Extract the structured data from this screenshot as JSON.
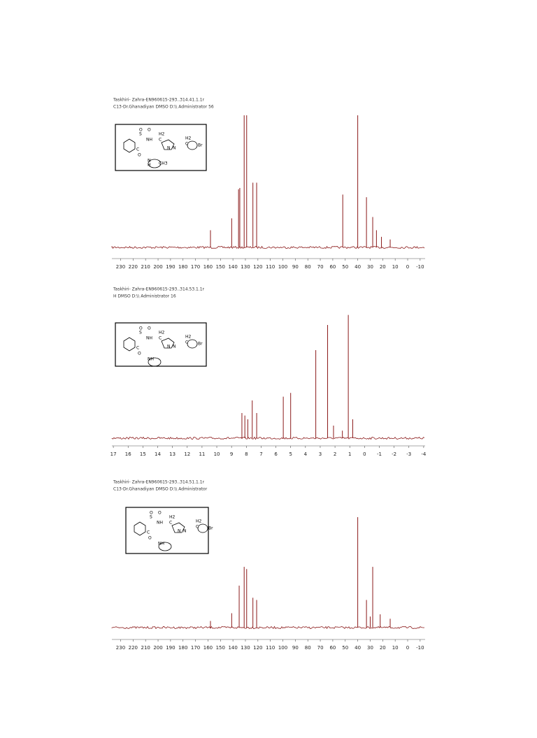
{
  "chart_data": [
    {
      "type": "spectrum",
      "title": "Taskhiri- Zahra-EN960615-293..314.41.1.1r",
      "subtitle": "C13-Dr.Ghanadiyan DMSO D:\\\\ Administrator 56",
      "x": [
        158,
        141,
        135.5,
        134.5,
        131,
        129,
        124,
        121,
        52,
        40,
        33,
        28,
        25,
        21,
        14
      ],
      "values": [
        13,
        22,
        44,
        45,
        100,
        100,
        49,
        49,
        40,
        100,
        38,
        23,
        13,
        8,
        6
      ],
      "xlim": [
        237,
        -14
      ],
      "xticks": [
        230,
        220,
        210,
        200,
        190,
        180,
        170,
        160,
        150,
        140,
        130,
        120,
        110,
        100,
        90,
        80,
        70,
        60,
        50,
        40,
        30,
        20,
        10,
        0,
        -10
      ],
      "ylim": [
        0,
        100
      ],
      "color": "#8b1a1a",
      "structure_labels": [
        "S",
        "O",
        "O",
        "NH",
        "C",
        "H2",
        "N",
        "N",
        "C",
        "H2",
        "Br",
        "O",
        "C",
        "N",
        "H",
        "CH3"
      ]
    },
    {
      "type": "spectrum",
      "title": "Taskhiri- Zahra-EN960615-293..314.53.1.1r",
      "subtitle": "H DMSO D:\\\\ Administrator 16",
      "x": [
        8.3,
        8.1,
        7.9,
        7.6,
        7.3,
        5.5,
        5.0,
        3.3,
        2.5,
        2.1,
        1.5,
        1.1,
        0.8
      ],
      "values": [
        20,
        18,
        15,
        30,
        20,
        33,
        36,
        70,
        90,
        10,
        6,
        98,
        15
      ],
      "xlim": [
        17.1,
        -4.1
      ],
      "xticks": [
        17,
        16,
        15,
        14,
        13,
        12,
        11,
        10,
        9,
        8,
        7,
        6,
        5,
        4,
        3,
        2,
        1,
        0,
        -1,
        -2,
        -3,
        -4
      ],
      "ylim": [
        0,
        100
      ],
      "color": "#8b1a1a",
      "structure_labels": [
        "S",
        "O",
        "O",
        "NH",
        "C",
        "H2",
        "N",
        "N",
        "C",
        "H2",
        "Br",
        "O",
        "C",
        "NH"
      ]
    },
    {
      "type": "spectrum",
      "title": "Taskhiri- Zahra-EN960615-293..314.51.1.1r",
      "subtitle": "C13-Dr.Ghanadiyan DMSO D:\\\\ Administrator",
      "x": [
        158,
        141,
        135,
        131,
        129,
        124,
        121,
        40,
        33,
        30,
        28,
        22,
        14
      ],
      "values": [
        6,
        13,
        38,
        55,
        53,
        27,
        25,
        100,
        25,
        10,
        55,
        12,
        8
      ],
      "xlim": [
        237,
        -14
      ],
      "xticks": [
        230,
        220,
        210,
        200,
        190,
        180,
        170,
        160,
        150,
        140,
        130,
        120,
        110,
        100,
        90,
        80,
        70,
        60,
        50,
        40,
        30,
        20,
        10,
        0,
        -10
      ],
      "ylim": [
        0,
        100
      ],
      "color": "#8b1a1a",
      "structure_labels": [
        "S",
        "O",
        "O",
        "NH",
        "C",
        "H2",
        "N",
        "N",
        "C",
        "H2",
        "Br",
        "O",
        "C",
        "NH"
      ]
    }
  ]
}
